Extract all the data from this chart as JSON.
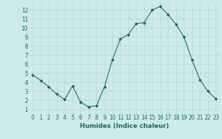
{
  "x": [
    0,
    1,
    2,
    3,
    4,
    5,
    6,
    7,
    8,
    9,
    10,
    11,
    12,
    13,
    14,
    15,
    16,
    17,
    18,
    19,
    20,
    21,
    22,
    23
  ],
  "y": [
    4.8,
    4.2,
    3.5,
    2.7,
    2.1,
    3.6,
    1.8,
    1.3,
    1.4,
    3.5,
    6.5,
    8.8,
    9.3,
    10.5,
    10.6,
    12.0,
    12.4,
    11.5,
    10.4,
    9.0,
    6.5,
    4.3,
    3.0,
    2.2
  ],
  "line_color": "#1a6b5a",
  "marker": "D",
  "marker_size": 2.0,
  "bg_color": "#cceae7",
  "grid_color": "#add4d0",
  "xlabel": "Humidex (Indice chaleur)",
  "xlim": [
    -0.5,
    23.5
  ],
  "ylim": [
    0.5,
    12.8
  ],
  "yticks": [
    1,
    2,
    3,
    4,
    5,
    6,
    7,
    8,
    9,
    10,
    11,
    12
  ],
  "xticks": [
    0,
    1,
    2,
    3,
    4,
    5,
    6,
    7,
    8,
    9,
    10,
    11,
    12,
    13,
    14,
    15,
    16,
    17,
    18,
    19,
    20,
    21,
    22,
    23
  ],
  "font_size_label": 6.5,
  "font_size_tick": 5.5
}
